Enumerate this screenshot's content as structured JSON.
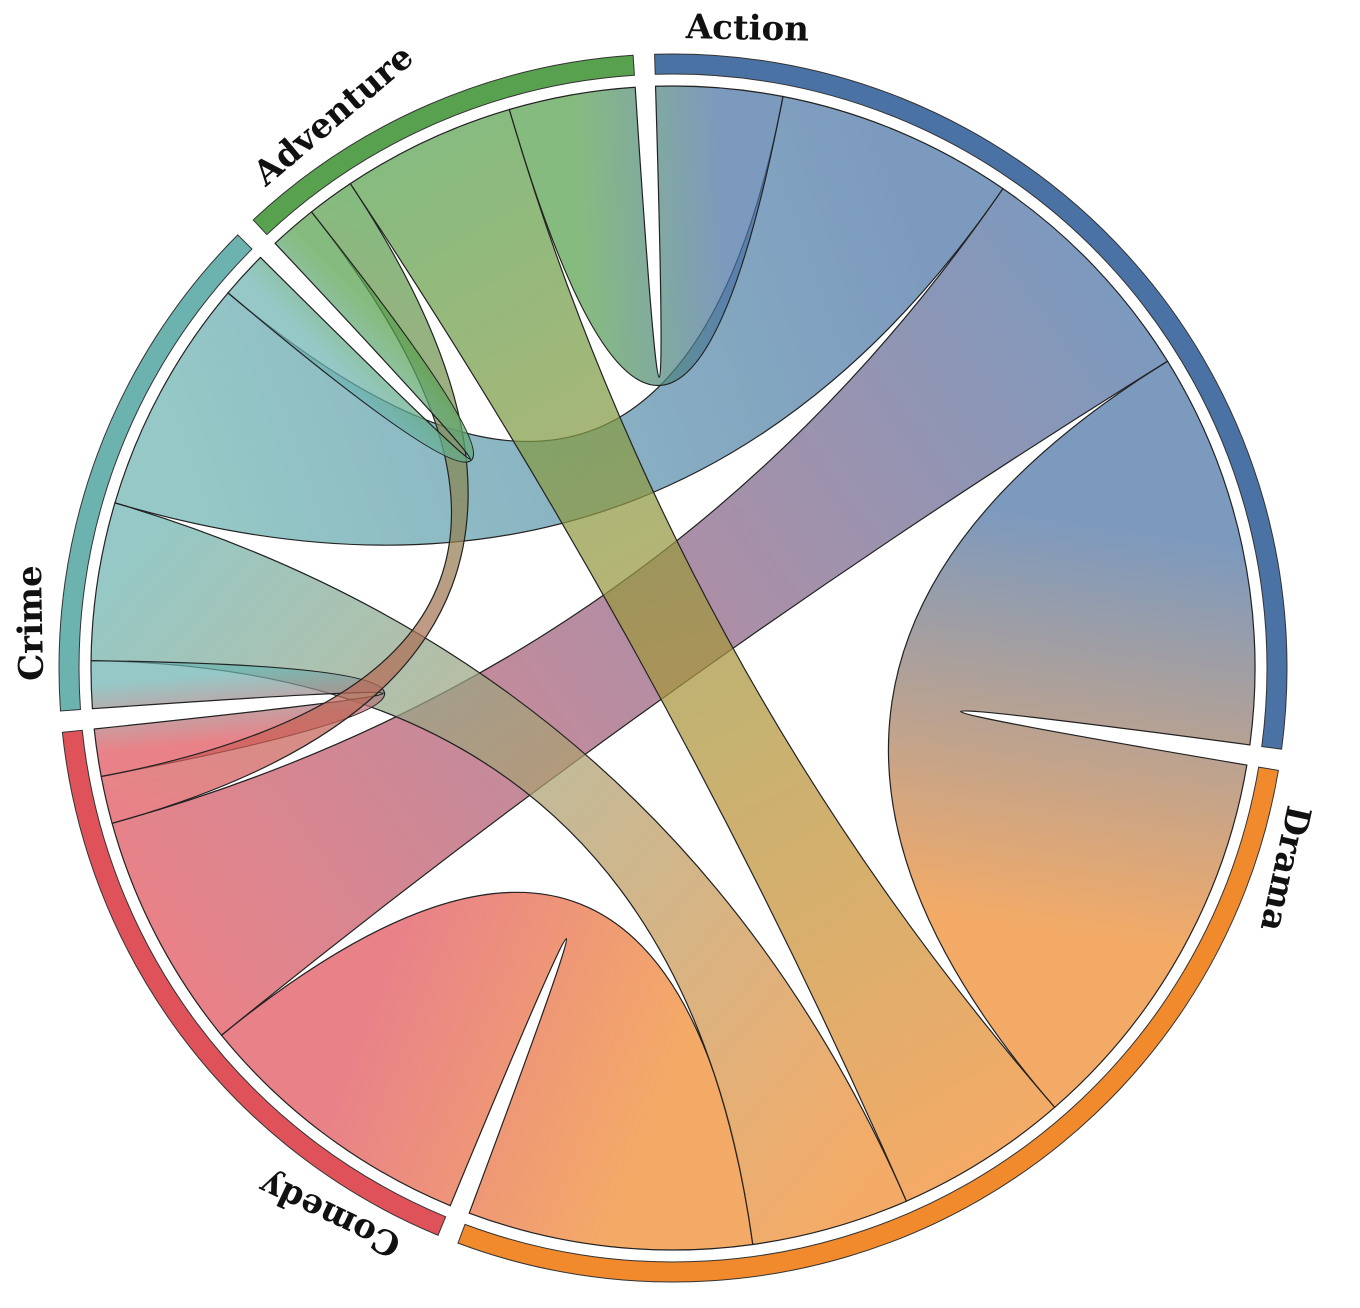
{
  "chart_data": {
    "type": "chord",
    "groups": [
      {
        "name": "Action",
        "color": "#4a72a5"
      },
      {
        "name": "Drama",
        "color": "#f08a2c"
      },
      {
        "name": "Comedy",
        "color": "#e0525a"
      },
      {
        "name": "Crime",
        "color": "#6cb3b0"
      },
      {
        "name": "Adventure",
        "color": "#58a14e"
      }
    ],
    "matrix": [
      [
        0,
        25,
        15,
        15,
        8
      ],
      [
        25,
        0,
        18,
        10,
        11
      ],
      [
        15,
        18,
        0,
        3,
        3
      ],
      [
        15,
        10,
        3,
        0,
        3
      ],
      [
        8,
        11,
        3,
        3,
        0
      ]
    ],
    "legend": "none"
  }
}
